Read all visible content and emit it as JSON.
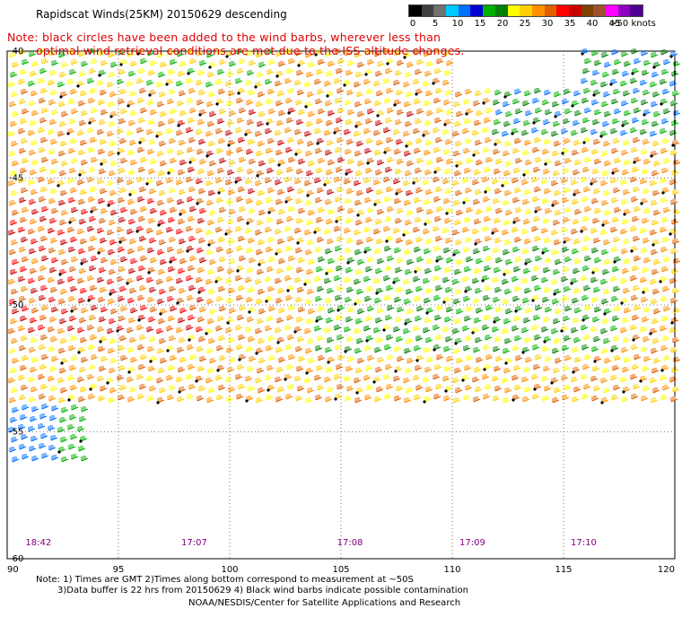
{
  "title": "Rapidscat Winds(25KM) 20150629 descending",
  "note": {
    "line1": "Note: black circles have been added to the wind barbs, wherever less than",
    "line2": "optimal wind retrieval conditions are met due to the ISS altitude changes."
  },
  "legend": {
    "colors": [
      "#000000",
      "#404040",
      "#707070",
      "#00c8ff",
      "#0070ff",
      "#0000d0",
      "#00b000",
      "#008000",
      "#ffff00",
      "#ffd000",
      "#ff9000",
      "#e06000",
      "#ff0000",
      "#c80000",
      "#804000",
      "#a05030",
      "#ff00ff",
      "#9000c0",
      "#500090"
    ],
    "labels": [
      "0",
      "5",
      "10",
      "15",
      "20",
      "25",
      "30",
      "35",
      "40",
      "45",
      ">50 knots"
    ]
  },
  "map": {
    "lon_ticks": [
      "90",
      "95",
      "100",
      "105",
      "110",
      "115",
      "120"
    ],
    "lat_ticks": [
      "-40",
      "-45",
      "-50",
      "-55",
      "-60"
    ],
    "times": [
      "18:42",
      "17:07",
      "17:08",
      "17:09",
      "17:10"
    ]
  },
  "footer": {
    "line1": "Note: 1) Times are GMT 2)Times along bottom correspond to measurement at ~50S",
    "line2": "3)Data buffer is 22 hrs from 20150629 4) Black wind barbs indicate possible contamination",
    "line3": "NOAA/NESDIS/Center for Satellite Applications and Research"
  }
}
